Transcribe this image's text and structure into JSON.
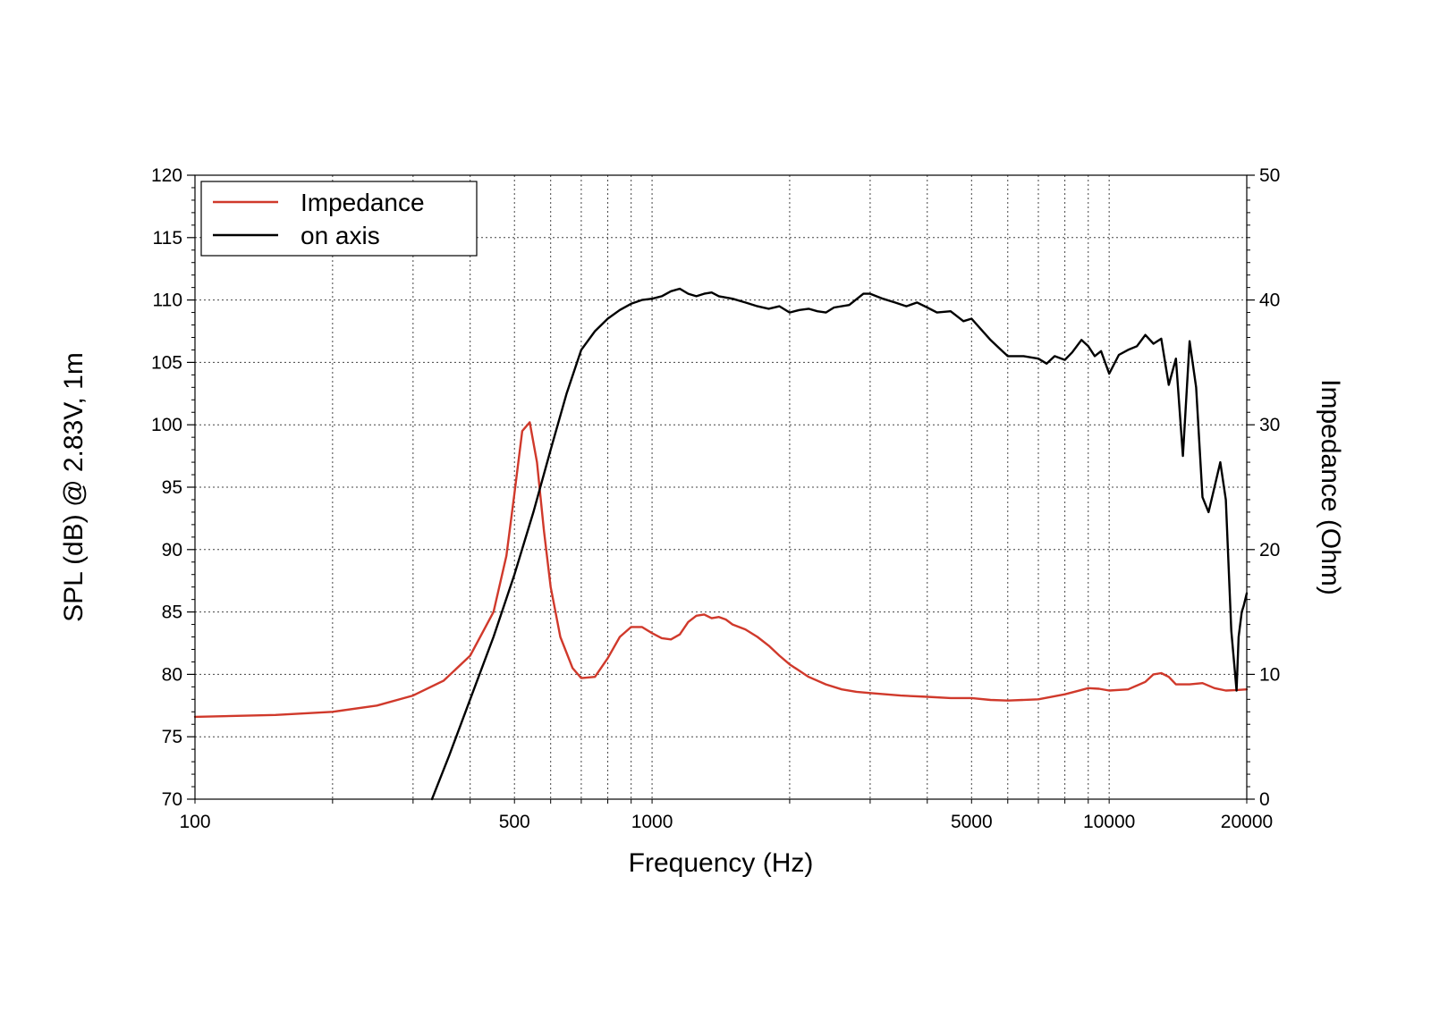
{
  "chart_data": {
    "type": "line",
    "title": "",
    "xlabel": "Frequency (Hz)",
    "ylabel": "SPL (dB) @ 2.83V, 1m",
    "y2label": "Impedance (Ohm)",
    "xscale": "log",
    "xlim": [
      100,
      20000
    ],
    "ylim": [
      70,
      120
    ],
    "y2lim": [
      0,
      50
    ],
    "grid": true,
    "legend_position": "top-left",
    "x_tick_labels": [
      "100",
      "500",
      "1000",
      "5000",
      "10000",
      "20000"
    ],
    "x_tick_values": [
      100,
      500,
      1000,
      5000,
      10000,
      20000
    ],
    "x_grid_values": [
      200,
      300,
      400,
      500,
      600,
      700,
      800,
      900,
      1000,
      2000,
      3000,
      4000,
      5000,
      6000,
      7000,
      8000,
      9000,
      10000
    ],
    "y_tick_labels": [
      "70",
      "75",
      "80",
      "85",
      "90",
      "95",
      "100",
      "105",
      "110",
      "115",
      "120"
    ],
    "y2_tick_labels": [
      "0",
      "10",
      "20",
      "30",
      "40",
      "50"
    ],
    "series": [
      {
        "name": "Impedance",
        "axis": "right",
        "color": "#d0392b",
        "x": [
          100,
          150,
          200,
          250,
          300,
          350,
          400,
          450,
          480,
          500,
          520,
          540,
          560,
          580,
          600,
          630,
          670,
          700,
          750,
          800,
          850,
          900,
          950,
          1000,
          1050,
          1100,
          1150,
          1200,
          1250,
          1300,
          1350,
          1400,
          1450,
          1500,
          1600,
          1700,
          1800,
          1900,
          2000,
          2200,
          2400,
          2600,
          2800,
          3000,
          3500,
          4000,
          4500,
          5000,
          5500,
          6000,
          7000,
          8000,
          8500,
          9000,
          9500,
          10000,
          11000,
          12000,
          12500,
          13000,
          13500,
          14000,
          15000,
          16000,
          17000,
          18000,
          19000,
          20000
        ],
        "values": [
          6.6,
          6.75,
          7.0,
          7.5,
          8.3,
          9.5,
          11.5,
          15.0,
          19.5,
          24.5,
          29.5,
          30.2,
          27.0,
          21.5,
          17.0,
          13.0,
          10.5,
          9.7,
          9.8,
          11.3,
          13.0,
          13.8,
          13.8,
          13.3,
          12.9,
          12.8,
          13.2,
          14.2,
          14.7,
          14.8,
          14.5,
          14.6,
          14.4,
          14.0,
          13.6,
          13.0,
          12.3,
          11.5,
          10.8,
          9.8,
          9.2,
          8.8,
          8.6,
          8.5,
          8.3,
          8.2,
          8.1,
          8.1,
          7.95,
          7.9,
          8.0,
          8.4,
          8.65,
          8.9,
          8.85,
          8.7,
          8.8,
          9.4,
          10.0,
          10.1,
          9.8,
          9.2,
          9.2,
          9.3,
          8.9,
          8.7,
          8.75,
          8.8
        ]
      },
      {
        "name": "on axis",
        "axis": "left",
        "color": "#000000",
        "x": [
          330,
          360,
          400,
          450,
          500,
          550,
          600,
          650,
          700,
          750,
          800,
          850,
          900,
          950,
          1000,
          1050,
          1100,
          1150,
          1200,
          1250,
          1300,
          1350,
          1400,
          1500,
          1600,
          1700,
          1800,
          1900,
          2000,
          2100,
          2200,
          2300,
          2400,
          2500,
          2700,
          2900,
          3000,
          3200,
          3400,
          3600,
          3800,
          4000,
          4200,
          4500,
          4800,
          5000,
          5200,
          5500,
          5800,
          6000,
          6500,
          7000,
          7300,
          7600,
          8000,
          8300,
          8700,
          9000,
          9300,
          9600,
          10000,
          10500,
          11000,
          11500,
          12000,
          12500,
          13000,
          13500,
          14000,
          14500,
          15000,
          15500,
          16000,
          16500,
          17000,
          17500,
          18000,
          18500,
          19000,
          19200,
          19500,
          19700,
          20000
        ],
        "values": [
          70,
          73.5,
          78,
          83,
          88,
          93,
          98,
          102.5,
          106,
          107.5,
          108.5,
          109.2,
          109.7,
          110.0,
          110.1,
          110.3,
          110.7,
          110.9,
          110.5,
          110.3,
          110.5,
          110.6,
          110.3,
          110.1,
          109.8,
          109.5,
          109.3,
          109.5,
          109.0,
          109.2,
          109.3,
          109.1,
          109.0,
          109.4,
          109.6,
          110.5,
          110.5,
          110.1,
          109.8,
          109.5,
          109.8,
          109.4,
          109.0,
          109.1,
          108.3,
          108.5,
          107.8,
          106.8,
          106.0,
          105.5,
          105.5,
          105.3,
          104.9,
          105.5,
          105.2,
          105.8,
          106.8,
          106.3,
          105.5,
          105.9,
          104.1,
          105.6,
          106.0,
          106.3,
          107.2,
          106.5,
          106.9,
          103.2,
          105.3,
          97.5,
          106.7,
          103.0,
          94.2,
          93.0,
          95.0,
          97.0,
          94.0,
          83.5,
          78.7,
          83.0,
          85.0,
          85.5,
          86.5
        ]
      }
    ]
  }
}
